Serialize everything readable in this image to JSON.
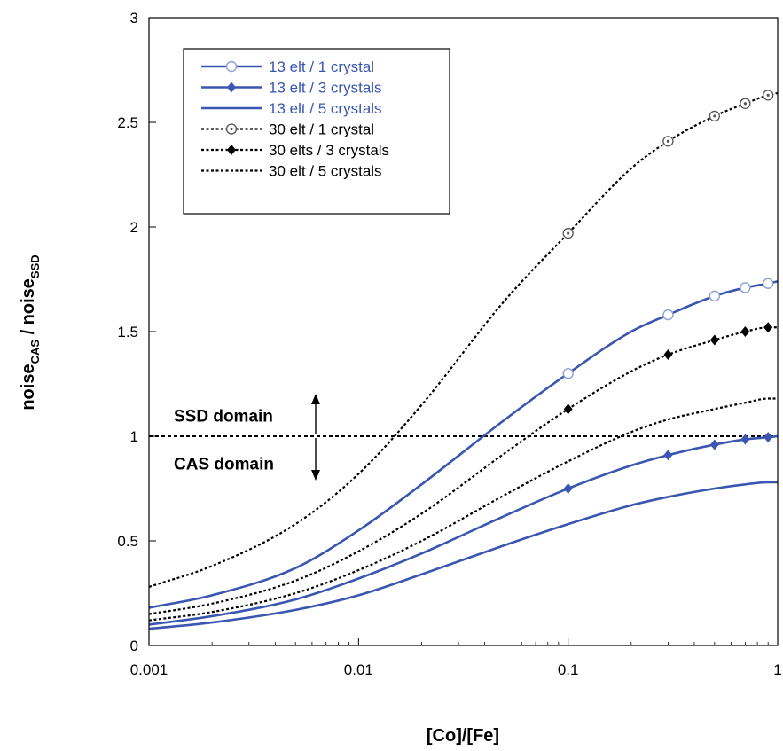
{
  "chart_data": {
    "type": "line",
    "xlabel": "[Co]/[Fe]",
    "ylabel_main": "noise",
    "ylabel_sub1": "CAS",
    "ylabel_sep": " / ",
    "ylabel_sub2": "SSD",
    "x_scale": "log",
    "xlim": [
      0.001,
      1
    ],
    "ylim": [
      0,
      3
    ],
    "x_ticks": [
      0.001,
      0.01,
      0.1,
      1
    ],
    "x_tick_labels": [
      "0.001",
      "0.01",
      "0.1",
      "1"
    ],
    "y_ticks": [
      0,
      0.5,
      1,
      1.5,
      2,
      2.5,
      3
    ],
    "y_tick_labels": [
      "0",
      "0.5",
      "1",
      "1.5",
      "2",
      "2.5",
      "3"
    ],
    "grid": false,
    "legend_position": "top-left",
    "colors": {
      "blue": "#3a56b0",
      "black": "#000000"
    },
    "reference_line": {
      "y": 1,
      "style": "dotted"
    },
    "annotations": [
      {
        "text": "SSD domain",
        "x": 0.001,
        "y": 1.1,
        "arrow": "up"
      },
      {
        "text": "CAS domain",
        "x": 0.001,
        "y": 0.87,
        "arrow": "down"
      }
    ],
    "series": [
      {
        "name": "13 elt / 1 crystal",
        "color": "#3a56b0",
        "style": "solid",
        "marker": "open-circle",
        "x": [
          0.001,
          0.002,
          0.005,
          0.01,
          0.02,
          0.05,
          0.1,
          0.2,
          0.3,
          0.5,
          0.7,
          0.9,
          1
        ],
        "y": [
          0.18,
          0.24,
          0.37,
          0.55,
          0.77,
          1.08,
          1.3,
          1.5,
          1.58,
          1.67,
          1.71,
          1.73,
          1.74
        ],
        "marker_x": [
          0.1,
          0.3,
          0.5,
          0.7,
          0.9
        ]
      },
      {
        "name": "13 elt / 3 crystals",
        "color": "#3a56b0",
        "style": "solid",
        "marker": "filled-diamond",
        "x": [
          0.001,
          0.002,
          0.005,
          0.01,
          0.02,
          0.05,
          0.1,
          0.2,
          0.3,
          0.5,
          0.7,
          0.9,
          1
        ],
        "y": [
          0.1,
          0.14,
          0.22,
          0.32,
          0.44,
          0.62,
          0.75,
          0.86,
          0.91,
          0.96,
          0.985,
          0.995,
          1.0
        ],
        "marker_x": [
          0.1,
          0.3,
          0.5,
          0.7,
          0.9
        ]
      },
      {
        "name": "13 elt / 5 crystals",
        "color": "#3a56b0",
        "style": "solid",
        "marker": "none",
        "x": [
          0.001,
          0.002,
          0.005,
          0.01,
          0.02,
          0.05,
          0.1,
          0.2,
          0.3,
          0.5,
          0.7,
          0.9,
          1
        ],
        "y": [
          0.08,
          0.11,
          0.17,
          0.24,
          0.34,
          0.48,
          0.58,
          0.67,
          0.71,
          0.75,
          0.77,
          0.78,
          0.78
        ],
        "marker_x": []
      },
      {
        "name": "30 elt / 1 crystal",
        "color": "#000000",
        "style": "dotted",
        "marker": "open-circle-dot",
        "x": [
          0.001,
          0.002,
          0.005,
          0.01,
          0.02,
          0.05,
          0.1,
          0.2,
          0.3,
          0.5,
          0.7,
          0.9,
          1
        ],
        "y": [
          0.28,
          0.38,
          0.58,
          0.82,
          1.15,
          1.65,
          1.97,
          2.28,
          2.41,
          2.53,
          2.59,
          2.63,
          2.64
        ],
        "marker_x": [
          0.1,
          0.3,
          0.5,
          0.7,
          0.9
        ]
      },
      {
        "name": "30 elts / 3 crystals",
        "color": "#000000",
        "style": "dotted",
        "marker": "filled-diamond",
        "x": [
          0.001,
          0.002,
          0.005,
          0.01,
          0.02,
          0.05,
          0.1,
          0.2,
          0.3,
          0.5,
          0.7,
          0.9,
          1
        ],
        "y": [
          0.15,
          0.2,
          0.31,
          0.45,
          0.63,
          0.92,
          1.13,
          1.31,
          1.39,
          1.46,
          1.5,
          1.52,
          1.52
        ],
        "marker_x": [
          0.1,
          0.3,
          0.5,
          0.7,
          0.9
        ]
      },
      {
        "name": "30 elt / 5 crystals",
        "color": "#000000",
        "style": "dotted",
        "marker": "none",
        "x": [
          0.001,
          0.002,
          0.005,
          0.01,
          0.02,
          0.05,
          0.1,
          0.2,
          0.3,
          0.5,
          0.7,
          0.9,
          1
        ],
        "y": [
          0.12,
          0.16,
          0.25,
          0.36,
          0.5,
          0.72,
          0.88,
          1.02,
          1.08,
          1.13,
          1.16,
          1.18,
          1.18
        ],
        "marker_x": []
      }
    ]
  }
}
